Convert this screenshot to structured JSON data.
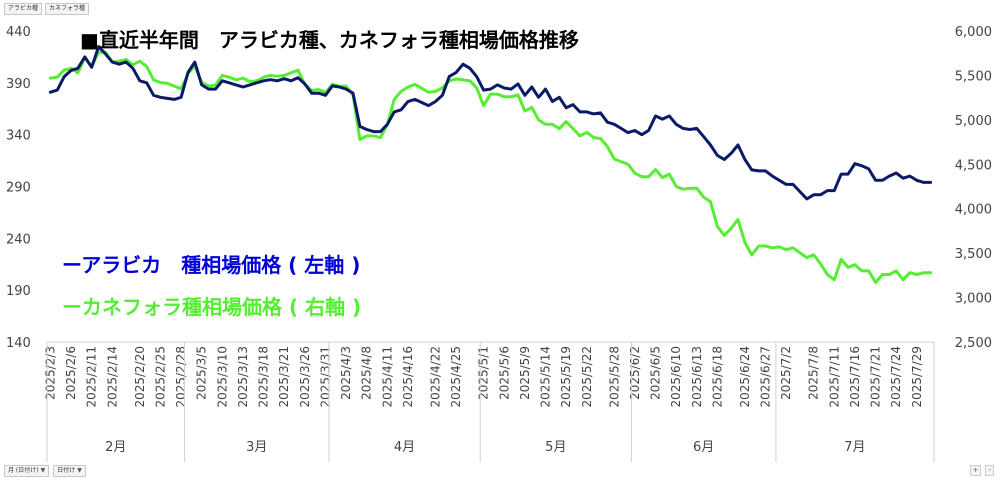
{
  "ui": {
    "field_buttons_top": [
      "アラビカ種",
      "カネフォラ種"
    ],
    "field_buttons_bottom": [
      {
        "label": "月 (日付け)",
        "icon": "filter-icon"
      },
      {
        "label": "日付け",
        "icon": "filter-icon"
      }
    ],
    "zoom_buttons": [
      "+",
      "-"
    ]
  },
  "chart_data": {
    "type": "line",
    "title": "■直近半年間　アラビカ種、カネフォラ種相場価格推移",
    "legend": {
      "placement": "middle-left",
      "entries": [
        {
          "label": "ーアラビカ　種相場価格 ( 左軸 )",
          "color": "#0000d8"
        },
        {
          "label": "ーカネフォラ種相場価格 ( 右軸 )",
          "color": "#55ee33"
        }
      ]
    },
    "grid": false,
    "y_left": {
      "min": 140,
      "max": 440,
      "ticks": [
        "440",
        "390",
        "340",
        "290",
        "240",
        "190",
        "140"
      ]
    },
    "y_right": {
      "min": 2500,
      "max": 6000,
      "ticks": [
        "6,000",
        "5,500",
        "5,000",
        "4,500",
        "4,000",
        "3,500",
        "3,000",
        "2,500"
      ]
    },
    "x_tick_labels": [
      "2025/2/3",
      "2025/2/6",
      "2025/2/11",
      "2025/2/14",
      "2025/2/20",
      "2025/2/25",
      "2025/2/28",
      "2025/3/5",
      "2025/3/10",
      "2025/3/13",
      "2025/3/18",
      "2025/3/21",
      "2025/3/26",
      "2025/3/31",
      "2025/4/3",
      "2025/4/8",
      "2025/4/11",
      "2025/4/16",
      "2025/4/22",
      "2025/4/25",
      "2025/5/1",
      "2025/5/6",
      "2025/5/9",
      "2025/5/14",
      "2025/5/19",
      "2025/5/22",
      "2025/5/28",
      "2025/6/2",
      "2025/6/5",
      "2025/6/10",
      "2025/6/13",
      "2025/6/18",
      "2025/6/24",
      "2025/6/27",
      "2025/7/2",
      "2025/7/8",
      "2025/7/11",
      "2025/7/16",
      "2025/7/21",
      "2025/7/24",
      "2025/7/29"
    ],
    "months": [
      {
        "label": "2月",
        "start": "2025/2/3",
        "end": "2025/2/28"
      },
      {
        "label": "3月",
        "start": "2025/3/3",
        "end": "2025/3/31"
      },
      {
        "label": "4月",
        "start": "2025/4/1",
        "end": "2025/4/30"
      },
      {
        "label": "5月",
        "start": "2025/5/1",
        "end": "2025/5/30"
      },
      {
        "label": "6月",
        "start": "2025/6/2",
        "end": "2025/6/30"
      },
      {
        "label": "7月",
        "start": "2025/7/1",
        "end": "2025/7/31"
      }
    ],
    "x_start": "2025/2/3",
    "x_end": "2025/7/31",
    "series": [
      {
        "axis": "left",
        "color": "#0a1a66",
        "points": [
          [
            "2025/2/3",
            381
          ],
          [
            "2025/2/4",
            383
          ],
          [
            "2025/2/5",
            396
          ],
          [
            "2025/2/6",
            402
          ],
          [
            "2025/2/7",
            404
          ],
          [
            "2025/2/10",
            415
          ],
          [
            "2025/2/11",
            405
          ],
          [
            "2025/2/12",
            425
          ],
          [
            "2025/2/13",
            418
          ],
          [
            "2025/2/14",
            410
          ],
          [
            "2025/2/17",
            408
          ],
          [
            "2025/2/18",
            410
          ],
          [
            "2025/2/19",
            404
          ],
          [
            "2025/2/20",
            392
          ],
          [
            "2025/2/21",
            390
          ],
          [
            "2025/2/24",
            378
          ],
          [
            "2025/2/25",
            376
          ],
          [
            "2025/2/26",
            375
          ],
          [
            "2025/2/27",
            374
          ],
          [
            "2025/2/28",
            376
          ],
          [
            "2025/3/3",
            400
          ],
          [
            "2025/3/4",
            410
          ],
          [
            "2025/3/5",
            388
          ],
          [
            "2025/3/6",
            384
          ],
          [
            "2025/3/7",
            384
          ],
          [
            "2025/3/10",
            392
          ],
          [
            "2025/3/11",
            390
          ],
          [
            "2025/3/12",
            388
          ],
          [
            "2025/3/13",
            386
          ],
          [
            "2025/3/14",
            388
          ],
          [
            "2025/3/17",
            390
          ],
          [
            "2025/3/18",
            392
          ],
          [
            "2025/3/19",
            393
          ],
          [
            "2025/3/20",
            392
          ],
          [
            "2025/3/21",
            394
          ],
          [
            "2025/3/24",
            392
          ],
          [
            "2025/3/25",
            395
          ],
          [
            "2025/3/26",
            389
          ],
          [
            "2025/3/27",
            380
          ],
          [
            "2025/3/28",
            380
          ],
          [
            "2025/3/31",
            378
          ],
          [
            "2025/4/1",
            387
          ],
          [
            "2025/4/2",
            386
          ],
          [
            "2025/4/3",
            384
          ],
          [
            "2025/4/4",
            380
          ],
          [
            "2025/4/7",
            348
          ],
          [
            "2025/4/8",
            345
          ],
          [
            "2025/4/9",
            343
          ],
          [
            "2025/4/10",
            343
          ],
          [
            "2025/4/11",
            350
          ],
          [
            "2025/4/14",
            362
          ],
          [
            "2025/4/15",
            364
          ],
          [
            "2025/4/16",
            372
          ],
          [
            "2025/4/17",
            374
          ],
          [
            "2025/4/21",
            368
          ],
          [
            "2025/4/22",
            372
          ],
          [
            "2025/4/23",
            378
          ],
          [
            "2025/4/24",
            396
          ],
          [
            "2025/4/25",
            400
          ],
          [
            "2025/4/28",
            408
          ],
          [
            "2025/4/29",
            404
          ],
          [
            "2025/4/30",
            396
          ],
          [
            "2025/5/1",
            383
          ],
          [
            "2025/5/2",
            384
          ],
          [
            "2025/5/5",
            388
          ],
          [
            "2025/5/6",
            385
          ],
          [
            "2025/5/7",
            384
          ],
          [
            "2025/5/8",
            389
          ],
          [
            "2025/5/9",
            378
          ],
          [
            "2025/5/12",
            386
          ],
          [
            "2025/5/13",
            376
          ],
          [
            "2025/5/14",
            384
          ],
          [
            "2025/5/15",
            372
          ],
          [
            "2025/5/16",
            376
          ],
          [
            "2025/5/19",
            366
          ],
          [
            "2025/5/20",
            369
          ],
          [
            "2025/5/21",
            362
          ],
          [
            "2025/5/22",
            362
          ],
          [
            "2025/5/23",
            360
          ],
          [
            "2025/5/26",
            361
          ],
          [
            "2025/5/27",
            352
          ],
          [
            "2025/5/28",
            350
          ],
          [
            "2025/5/29",
            346
          ],
          [
            "2025/5/30",
            342
          ],
          [
            "2025/6/2",
            344
          ],
          [
            "2025/6/3",
            340
          ],
          [
            "2025/6/4",
            344
          ],
          [
            "2025/6/5",
            358
          ],
          [
            "2025/6/6",
            355
          ],
          [
            "2025/6/9",
            358
          ],
          [
            "2025/6/10",
            350
          ],
          [
            "2025/6/11",
            346
          ],
          [
            "2025/6/12",
            345
          ],
          [
            "2025/6/13",
            346
          ],
          [
            "2025/6/16",
            338
          ],
          [
            "2025/6/17",
            330
          ],
          [
            "2025/6/18",
            320
          ],
          [
            "2025/6/19",
            316
          ],
          [
            "2025/6/20",
            322
          ],
          [
            "2025/6/23",
            330
          ],
          [
            "2025/6/24",
            316
          ],
          [
            "2025/6/25",
            306
          ],
          [
            "2025/6/26",
            305
          ],
          [
            "2025/6/27",
            305
          ],
          [
            "2025/6/30",
            300
          ],
          [
            "2025/7/1",
            296
          ],
          [
            "2025/7/2",
            292
          ],
          [
            "2025/7/3",
            292
          ],
          [
            "2025/7/7",
            278
          ],
          [
            "2025/7/8",
            282
          ],
          [
            "2025/7/9",
            282
          ],
          [
            "2025/7/10",
            286
          ],
          [
            "2025/7/11",
            286
          ],
          [
            "2025/7/14",
            302
          ],
          [
            "2025/7/15",
            302
          ],
          [
            "2025/7/16",
            312
          ],
          [
            "2025/7/17",
            310
          ],
          [
            "2025/7/18",
            307
          ],
          [
            "2025/7/21",
            296
          ],
          [
            "2025/7/22",
            296
          ],
          [
            "2025/7/23",
            300
          ],
          [
            "2025/7/24",
            303
          ],
          [
            "2025/7/25",
            298
          ],
          [
            "2025/7/28",
            300
          ],
          [
            "2025/7/29",
            296
          ],
          [
            "2025/7/30",
            294
          ],
          [
            "2025/7/31",
            294
          ]
        ]
      },
      {
        "axis": "right",
        "color": "#55ee33",
        "points": [
          [
            "2025/2/3",
            5470
          ],
          [
            "2025/2/4",
            5480
          ],
          [
            "2025/2/5",
            5560
          ],
          [
            "2025/2/6",
            5580
          ],
          [
            "2025/2/7",
            5530
          ],
          [
            "2025/2/10",
            5700
          ],
          [
            "2025/2/11",
            5600
          ],
          [
            "2025/2/12",
            5760
          ],
          [
            "2025/2/13",
            5760
          ],
          [
            "2025/2/14",
            5650
          ],
          [
            "2025/2/17",
            5660
          ],
          [
            "2025/2/18",
            5680
          ],
          [
            "2025/2/19",
            5620
          ],
          [
            "2025/2/20",
            5660
          ],
          [
            "2025/2/21",
            5600
          ],
          [
            "2025/2/24",
            5450
          ],
          [
            "2025/2/25",
            5420
          ],
          [
            "2025/2/26",
            5410
          ],
          [
            "2025/2/27",
            5380
          ],
          [
            "2025/2/28",
            5350
          ],
          [
            "2025/3/3",
            5520
          ],
          [
            "2025/3/4",
            5610
          ],
          [
            "2025/3/5",
            5420
          ],
          [
            "2025/3/6",
            5380
          ],
          [
            "2025/3/7",
            5390
          ],
          [
            "2025/3/10",
            5500
          ],
          [
            "2025/3/11",
            5480
          ],
          [
            "2025/3/12",
            5450
          ],
          [
            "2025/3/13",
            5470
          ],
          [
            "2025/3/14",
            5430
          ],
          [
            "2025/3/17",
            5440
          ],
          [
            "2025/3/18",
            5480
          ],
          [
            "2025/3/19",
            5500
          ],
          [
            "2025/3/20",
            5490
          ],
          [
            "2025/3/21",
            5500
          ],
          [
            "2025/3/24",
            5530
          ],
          [
            "2025/3/25",
            5560
          ],
          [
            "2025/3/26",
            5400
          ],
          [
            "2025/3/27",
            5330
          ],
          [
            "2025/3/28",
            5340
          ],
          [
            "2025/3/31",
            5310
          ],
          [
            "2025/4/1",
            5400
          ],
          [
            "2025/4/2",
            5380
          ],
          [
            "2025/4/3",
            5380
          ],
          [
            "2025/4/4",
            5280
          ],
          [
            "2025/4/7",
            4780
          ],
          [
            "2025/4/8",
            4820
          ],
          [
            "2025/4/9",
            4820
          ],
          [
            "2025/4/10",
            4800
          ],
          [
            "2025/4/11",
            4950
          ],
          [
            "2025/4/14",
            5230
          ],
          [
            "2025/4/15",
            5320
          ],
          [
            "2025/4/16",
            5370
          ],
          [
            "2025/4/17",
            5400
          ],
          [
            "2025/4/21",
            5310
          ],
          [
            "2025/4/22",
            5320
          ],
          [
            "2025/4/23",
            5360
          ],
          [
            "2025/4/24",
            5440
          ],
          [
            "2025/4/25",
            5460
          ],
          [
            "2025/4/28",
            5450
          ],
          [
            "2025/4/29",
            5440
          ],
          [
            "2025/4/30",
            5360
          ],
          [
            "2025/5/1",
            5160
          ],
          [
            "2025/5/2",
            5290
          ],
          [
            "2025/5/5",
            5290
          ],
          [
            "2025/5/6",
            5260
          ],
          [
            "2025/5/7",
            5260
          ],
          [
            "2025/5/8",
            5280
          ],
          [
            "2025/5/9",
            5100
          ],
          [
            "2025/5/12",
            5140
          ],
          [
            "2025/5/13",
            5000
          ],
          [
            "2025/5/14",
            4950
          ],
          [
            "2025/5/15",
            4950
          ],
          [
            "2025/5/16",
            4900
          ],
          [
            "2025/5/19",
            4980
          ],
          [
            "2025/5/20",
            4900
          ],
          [
            "2025/5/21",
            4820
          ],
          [
            "2025/5/22",
            4860
          ],
          [
            "2025/5/23",
            4800
          ],
          [
            "2025/5/26",
            4790
          ],
          [
            "2025/5/27",
            4700
          ],
          [
            "2025/5/28",
            4560
          ],
          [
            "2025/5/29",
            4530
          ],
          [
            "2025/5/30",
            4500
          ],
          [
            "2025/6/2",
            4400
          ],
          [
            "2025/6/3",
            4360
          ],
          [
            "2025/6/4",
            4360
          ],
          [
            "2025/6/5",
            4440
          ],
          [
            "2025/6/6",
            4350
          ],
          [
            "2025/6/9",
            4390
          ],
          [
            "2025/6/10",
            4250
          ],
          [
            "2025/6/11",
            4220
          ],
          [
            "2025/6/12",
            4230
          ],
          [
            "2025/6/13",
            4230
          ],
          [
            "2025/6/16",
            4130
          ],
          [
            "2025/6/17",
            4080
          ],
          [
            "2025/6/18",
            3800
          ],
          [
            "2025/6/19",
            3700
          ],
          [
            "2025/6/20",
            3780
          ],
          [
            "2025/6/23",
            3880
          ],
          [
            "2025/6/24",
            3620
          ],
          [
            "2025/6/25",
            3480
          ],
          [
            "2025/6/26",
            3580
          ],
          [
            "2025/6/27",
            3580
          ],
          [
            "2025/6/30",
            3560
          ],
          [
            "2025/7/1",
            3570
          ],
          [
            "2025/7/2",
            3540
          ],
          [
            "2025/7/3",
            3560
          ],
          [
            "2025/7/7",
            3450
          ],
          [
            "2025/7/8",
            3480
          ],
          [
            "2025/7/9",
            3380
          ],
          [
            "2025/7/10",
            3260
          ],
          [
            "2025/7/11",
            3200
          ],
          [
            "2025/7/14",
            3430
          ],
          [
            "2025/7/15",
            3340
          ],
          [
            "2025/7/16",
            3370
          ],
          [
            "2025/7/17",
            3300
          ],
          [
            "2025/7/18",
            3300
          ],
          [
            "2025/7/21",
            3170
          ],
          [
            "2025/7/22",
            3260
          ],
          [
            "2025/7/23",
            3260
          ],
          [
            "2025/7/24",
            3300
          ],
          [
            "2025/7/25",
            3200
          ],
          [
            "2025/7/28",
            3280
          ],
          [
            "2025/7/29",
            3260
          ],
          [
            "2025/7/30",
            3280
          ],
          [
            "2025/7/31",
            3280
          ]
        ]
      }
    ]
  }
}
